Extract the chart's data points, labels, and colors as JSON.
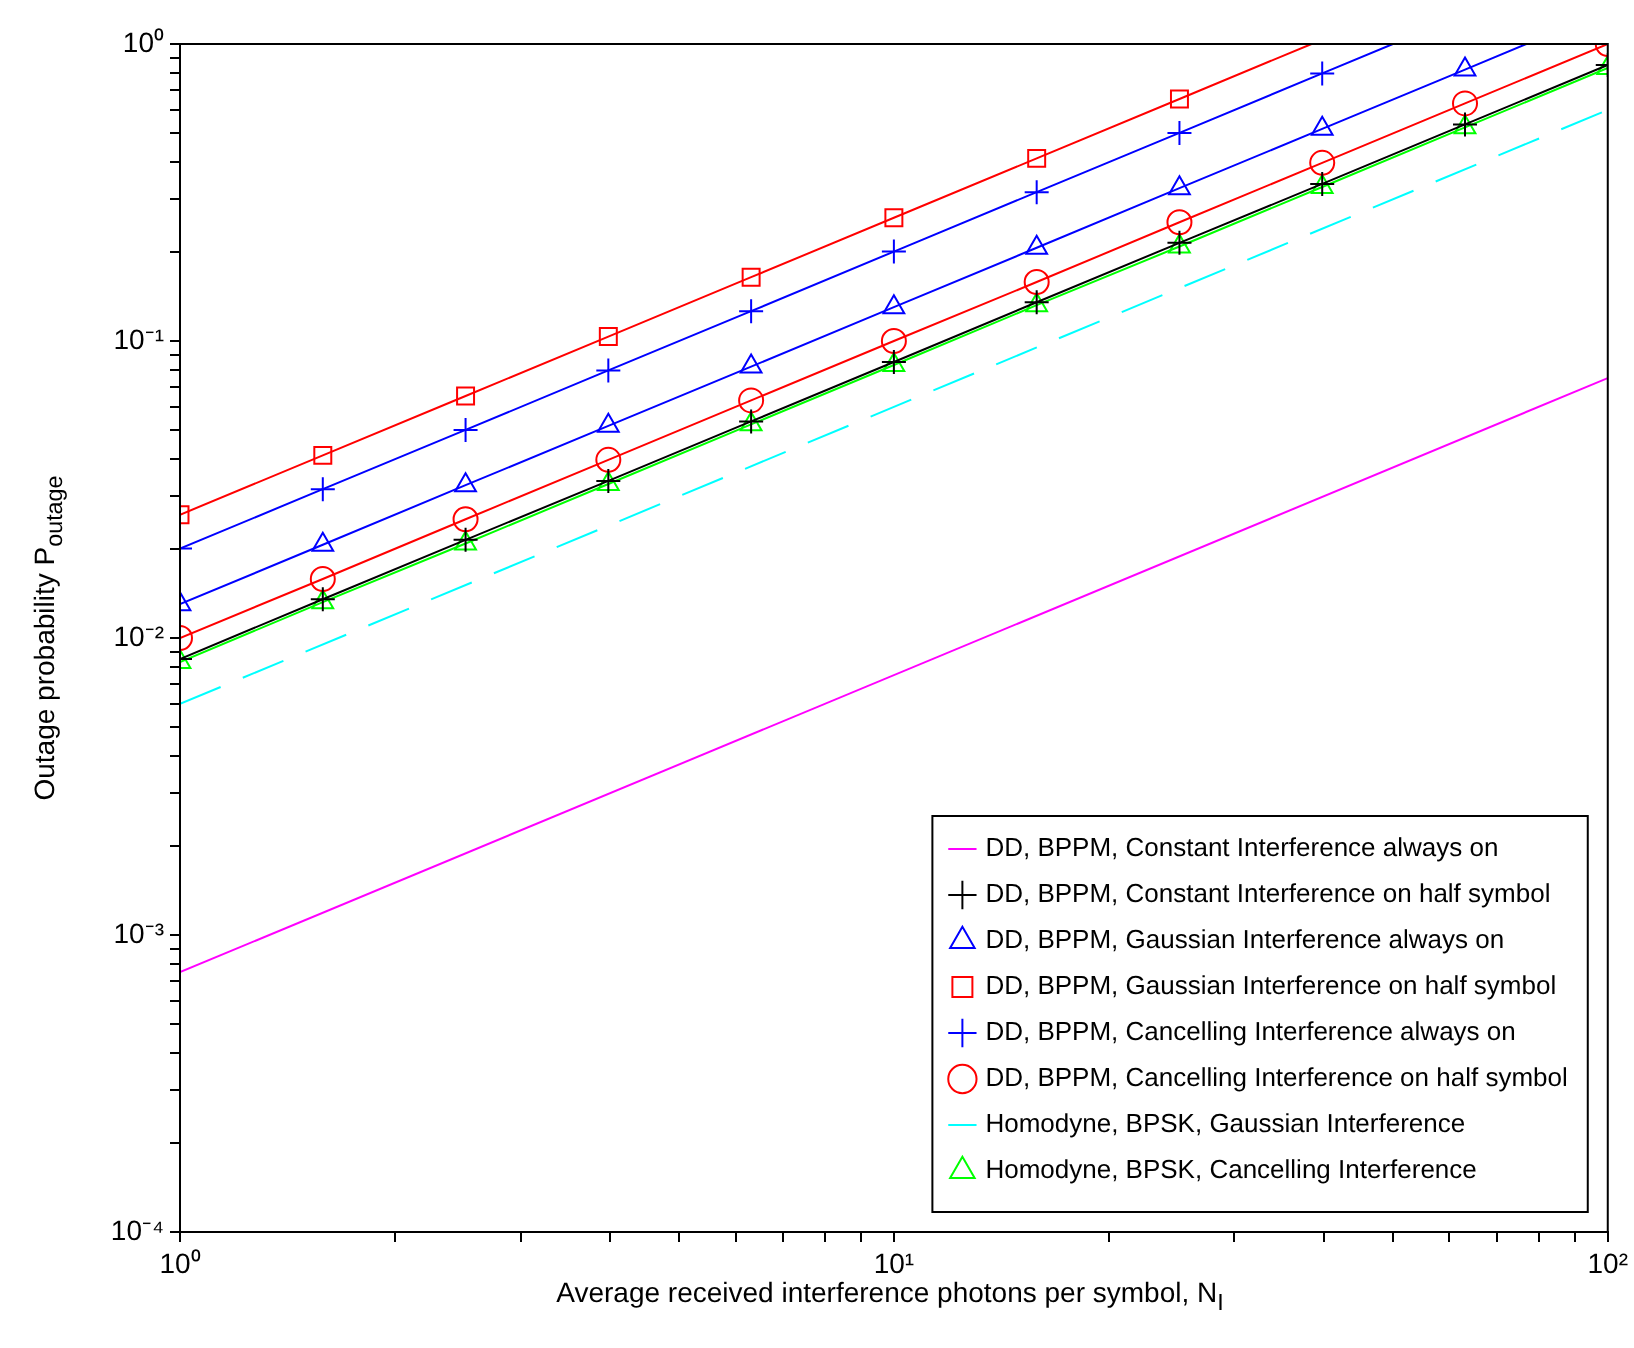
{
  "chart_data": {
    "type": "line",
    "xlabel": "Average received interference photons per symbol, N$_{I}$",
    "ylabel": "Outage probability P$_{outage}$",
    "log": "xy",
    "grid": false,
    "legend": "bottom right",
    "xlim": [
      1,
      100
    ],
    "ylim": [
      0.0001,
      1
    ],
    "xticks": [
      {
        "value": 1,
        "label": "10⁰"
      },
      {
        "value": 2,
        "label": null
      },
      {
        "value": 3,
        "label": null
      },
      {
        "value": 4,
        "label": null
      },
      {
        "value": 5,
        "label": null
      },
      {
        "value": 6,
        "label": null
      },
      {
        "value": 7,
        "label": null
      },
      {
        "value": 8,
        "label": null
      },
      {
        "value": 9,
        "label": null
      },
      {
        "value": 10,
        "label": "10¹"
      },
      {
        "value": 20,
        "label": null
      },
      {
        "value": 30,
        "label": null
      },
      {
        "value": 40,
        "label": null
      },
      {
        "value": 50,
        "label": null
      },
      {
        "value": 60,
        "label": null
      },
      {
        "value": 70,
        "label": null
      },
      {
        "value": 80,
        "label": null
      },
      {
        "value": 90,
        "label": null
      },
      {
        "value": 100,
        "label": "10²"
      }
    ],
    "yticks": [
      {
        "value": 0.0001,
        "label": "10⁻⁴"
      },
      {
        "value": 0.0002,
        "label": null
      },
      {
        "value": 0.0003,
        "label": null
      },
      {
        "value": 0.0004,
        "label": null
      },
      {
        "value": 0.0005,
        "label": null
      },
      {
        "value": 0.0006,
        "label": null
      },
      {
        "value": 0.0007,
        "label": null
      },
      {
        "value": 0.0008,
        "label": null
      },
      {
        "value": 0.0009,
        "label": null
      },
      {
        "value": 0.001,
        "label": "10⁻³"
      },
      {
        "value": 0.002,
        "label": null
      },
      {
        "value": 0.003,
        "label": null
      },
      {
        "value": 0.004,
        "label": null
      },
      {
        "value": 0.005,
        "label": null
      },
      {
        "value": 0.006,
        "label": null
      },
      {
        "value": 0.007,
        "label": null
      },
      {
        "value": 0.008,
        "label": null
      },
      {
        "value": 0.009,
        "label": null
      },
      {
        "value": 0.01,
        "label": "10⁻²"
      },
      {
        "value": 0.02,
        "label": null
      },
      {
        "value": 0.03,
        "label": null
      },
      {
        "value": 0.04,
        "label": null
      },
      {
        "value": 0.05,
        "label": null
      },
      {
        "value": 0.06,
        "label": null
      },
      {
        "value": 0.07,
        "label": null
      },
      {
        "value": 0.08,
        "label": null
      },
      {
        "value": 0.09,
        "label": null
      },
      {
        "value": 0.1,
        "label": "10⁻¹"
      },
      {
        "value": 0.2,
        "label": null
      },
      {
        "value": 0.3,
        "label": null
      },
      {
        "value": 0.4,
        "label": null
      },
      {
        "value": 0.5,
        "label": null
      },
      {
        "value": 0.6,
        "label": null
      },
      {
        "value": 0.7,
        "label": null
      },
      {
        "value": 0.8,
        "label": null
      },
      {
        "value": 0.9,
        "label": null
      },
      {
        "value": 1,
        "label": "10⁰"
      }
    ],
    "series": [
      {
        "name": "DD, BPPM, Constant Interference always on",
        "color": "#ff00ff",
        "marker": "none",
        "line_style": "solid",
        "x": [
          1,
          100
        ],
        "values": [
          0.00075,
          0.075
        ]
      },
      {
        "name": "DD, BPPM, Constant Interference on half symbol",
        "color": "#000000",
        "marker": "cross",
        "line_style": "solid",
        "x": [
          1,
          1.585,
          2.512,
          3.981,
          6.31,
          10,
          15.85,
          25.12,
          39.81,
          63.1,
          100
        ],
        "values": [
          0.0085,
          0.0135,
          0.0214,
          0.0338,
          0.0536,
          0.085,
          0.135,
          0.214,
          0.338,
          0.536,
          0.85
        ]
      },
      {
        "name": "DD, BPPM, Gaussian Interference always on",
        "color": "#0000ff",
        "marker": "triangle",
        "line_style": "solid",
        "x": [
          1,
          1.585,
          2.512,
          3.981,
          6.31,
          10,
          15.85,
          25.12,
          39.81,
          63.1,
          76.9
        ],
        "values": [
          0.013,
          0.0206,
          0.0327,
          0.0518,
          0.082,
          0.13,
          0.206,
          0.327,
          0.518,
          0.82,
          1
        ]
      },
      {
        "name": "DD, BPPM, Gaussian Interference on half symbol",
        "color": "#ff0000",
        "marker": "square",
        "line_style": "solid",
        "x": [
          1,
          1.585,
          2.512,
          3.981,
          6.31,
          10,
          15.85,
          25.12,
          38.46
        ],
        "values": [
          0.026,
          0.0412,
          0.0653,
          0.1035,
          0.164,
          0.26,
          0.412,
          0.653,
          1
        ]
      },
      {
        "name": "DD, BPPM, Cancelling Interference always on",
        "color": "#0000ff",
        "marker": "cross",
        "line_style": "solid",
        "x": [
          1,
          1.585,
          2.512,
          3.981,
          6.31,
          10,
          15.85,
          25.12,
          39.81,
          50
        ],
        "values": [
          0.02,
          0.0317,
          0.0502,
          0.0796,
          0.126,
          0.2,
          0.317,
          0.502,
          0.796,
          1
        ]
      },
      {
        "name": "DD, BPPM, Cancelling Interference on half symbol",
        "color": "#ff0000",
        "marker": "circle",
        "line_style": "solid",
        "x": [
          1,
          1.585,
          2.512,
          3.981,
          6.31,
          10,
          15.85,
          25.12,
          39.81,
          63.1,
          100
        ],
        "values": [
          0.01,
          0.0158,
          0.0251,
          0.0398,
          0.0631,
          0.1,
          0.158,
          0.251,
          0.398,
          0.631,
          1
        ]
      },
      {
        "name": "Homodyne, BPSK, Gaussian Interference",
        "color": "#00ffff",
        "marker": "none",
        "line_style": "dashed",
        "x": [
          1,
          100
        ],
        "values": [
          0.006,
          0.6
        ]
      },
      {
        "name": "Homodyne, BPSK, Cancelling Interference",
        "color": "#00ff00",
        "marker": "triangle",
        "line_style": "solid",
        "x": [
          1,
          1.585,
          2.512,
          3.981,
          6.31,
          10,
          15.85,
          25.12,
          39.81,
          63.1,
          100
        ],
        "values": [
          0.0083,
          0.0132,
          0.0208,
          0.033,
          0.0524,
          0.083,
          0.132,
          0.208,
          0.33,
          0.524,
          0.83
        ]
      }
    ]
  }
}
